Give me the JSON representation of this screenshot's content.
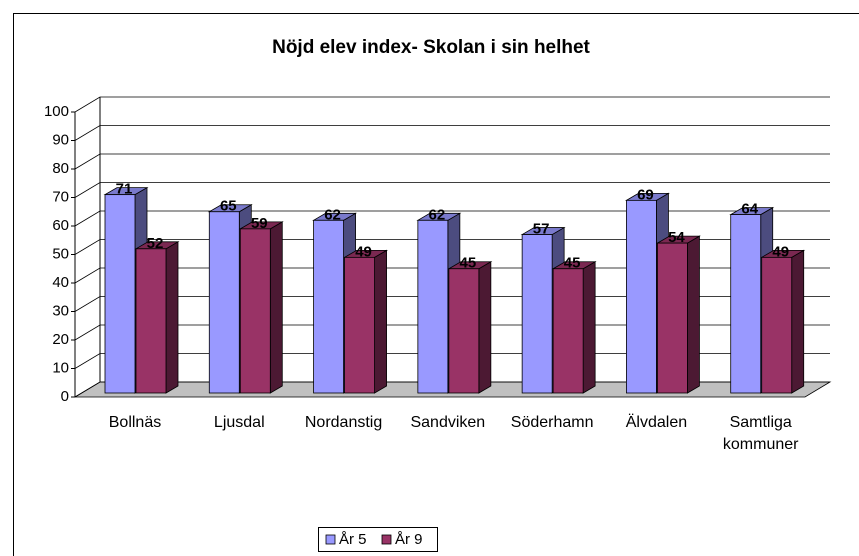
{
  "chart_data": {
    "type": "bar3d",
    "title": "Nöjd elev index- Skolan i sin helhet",
    "categories": [
      "Bollnäs",
      "Ljusdal",
      "Nordanstig",
      "Sandviken",
      "Söderhamn",
      "Älvdalen",
      "Samtliga kommuner"
    ],
    "series": [
      {
        "name": "År 5",
        "color": "#9999ff",
        "values": [
          71,
          65,
          62,
          62,
          57,
          69,
          64
        ]
      },
      {
        "name": "År 9",
        "color": "#993366",
        "values": [
          52,
          59,
          49,
          45,
          45,
          54,
          49
        ]
      }
    ],
    "ylim": [
      0,
      100
    ],
    "yticks": [
      0,
      10,
      20,
      30,
      40,
      50,
      60,
      70,
      80,
      90,
      100
    ],
    "grid": true,
    "legend": "bottom"
  }
}
